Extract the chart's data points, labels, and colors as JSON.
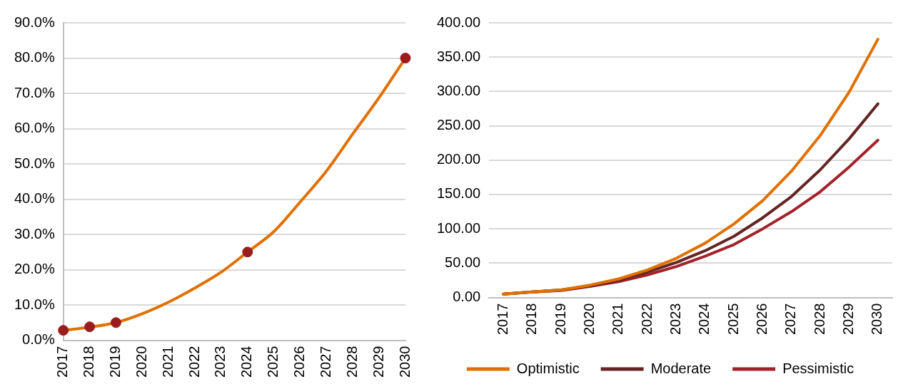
{
  "chart_data": [
    {
      "type": "line",
      "categories": [
        "2017",
        "2018",
        "2019",
        "2020",
        "2021",
        "2022",
        "2023",
        "2024",
        "2025",
        "2026",
        "2027",
        "2028",
        "2029",
        "2030"
      ],
      "ylim": [
        0,
        90
      ],
      "yticks": [
        {
          "value": 0,
          "label": "0.0%"
        },
        {
          "value": 10,
          "label": "10.0%"
        },
        {
          "value": 20,
          "label": "20.0%"
        },
        {
          "value": 30,
          "label": "30.0%"
        },
        {
          "value": 40,
          "label": "40.0%"
        },
        {
          "value": 50,
          "label": "50.0%"
        },
        {
          "value": 60,
          "label": "60.0%"
        },
        {
          "value": 70,
          "label": "70.0%"
        },
        {
          "value": 80,
          "label": "80.0%"
        },
        {
          "value": 90,
          "label": "90.0%"
        }
      ],
      "grid": "y",
      "legend": false,
      "series": [
        {
          "color": "#e07000",
          "marker": "none",
          "values": [
            2.8,
            3.7,
            5.0,
            7.5,
            10.8,
            14.8,
            19.3,
            25.0,
            30.8,
            39.2,
            48.0,
            58.5,
            68.8,
            80.0
          ]
        },
        {
          "type": "scatter",
          "color": "#9b1c1c",
          "marker": "circle",
          "values": [
            2.8,
            3.8,
            5.0,
            null,
            null,
            null,
            null,
            25.0,
            null,
            null,
            null,
            null,
            null,
            80.0
          ]
        }
      ]
    },
    {
      "type": "line",
      "categories": [
        "2017",
        "2018",
        "2019",
        "2020",
        "2021",
        "2022",
        "2023",
        "2024",
        "2025",
        "2026",
        "2027",
        "2028",
        "2029",
        "2030"
      ],
      "ylim": [
        0,
        400
      ],
      "yticks": [
        {
          "value": 0,
          "label": "0.00"
        },
        {
          "value": 50,
          "label": "50.00"
        },
        {
          "value": 100,
          "label": "100.00"
        },
        {
          "value": 150,
          "label": "150.00"
        },
        {
          "value": 200,
          "label": "200.00"
        },
        {
          "value": 250,
          "label": "250.00"
        },
        {
          "value": 300,
          "label": "300.00"
        },
        {
          "value": 350,
          "label": "350.00"
        },
        {
          "value": 400,
          "label": "400.00"
        }
      ],
      "grid": "y",
      "legend": "bottom",
      "series": [
        {
          "name": "Optimistic",
          "color": "#e07000",
          "values": [
            5,
            8,
            11,
            18,
            27,
            40,
            57,
            79,
            107,
            141,
            184,
            236,
            299,
            376
          ]
        },
        {
          "name": "Moderate",
          "color": "#632523",
          "values": [
            5,
            8,
            11,
            17,
            25,
            37,
            51,
            68,
            89,
            116,
            147,
            186,
            231,
            282
          ]
        },
        {
          "name": "Pessimistic",
          "color": "#a3222a",
          "values": [
            5,
            8,
            10,
            16,
            23,
            33,
            45,
            60,
            77,
            100,
            125,
            154,
            190,
            229
          ]
        }
      ]
    }
  ]
}
